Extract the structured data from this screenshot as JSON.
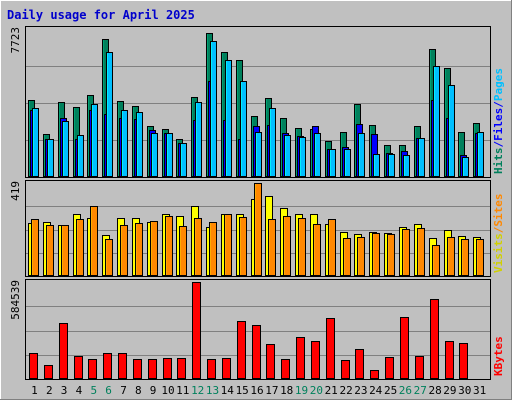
{
  "chart_data": [
    {
      "type": "bar",
      "title": "Daily usage for April 2025",
      "ymax_label": "7723",
      "ylim": [
        0,
        7723
      ],
      "categories": [
        "1",
        "2",
        "3",
        "4",
        "5",
        "6",
        "7",
        "8",
        "9",
        "10",
        "11",
        "12",
        "13",
        "14",
        "15",
        "16",
        "17",
        "18",
        "19",
        "20",
        "21",
        "22",
        "23",
        "24",
        "25",
        "26",
        "27",
        "28",
        "29",
        "30",
        "31"
      ],
      "weekend_days": [
        "5",
        "6",
        "12",
        "13",
        "19",
        "20",
        "26",
        "27"
      ],
      "side_labels": [
        {
          "text": "Hits",
          "color": "#00805c"
        },
        {
          "text": "/",
          "color": "#0000ff"
        },
        {
          "text": "Files",
          "color": "#0000ff"
        },
        {
          "text": "/",
          "color": "#0000ff"
        },
        {
          "text": "Pages",
          "color": "#00bfff"
        }
      ],
      "series": [
        {
          "name": "Hits",
          "color": "#00805c",
          "values": [
            4000,
            2250,
            3900,
            3650,
            4300,
            7200,
            3950,
            3700,
            2650,
            2500,
            2000,
            4150,
            7500,
            6500,
            6100,
            3200,
            4100,
            3100,
            2550,
            2500,
            1900,
            2350,
            3800,
            2700,
            1650,
            1650,
            2650,
            6700,
            5700,
            2350,
            2800
          ]
        },
        {
          "name": "Files",
          "color": "#0000ff",
          "values": [
            3500,
            2000,
            3100,
            2000,
            3500,
            3300,
            3100,
            3050,
            2450,
            2300,
            1800,
            3000,
            5000,
            3000,
            2000,
            2650,
            2700,
            2300,
            2150,
            2650,
            1450,
            1550,
            2750,
            2250,
            1250,
            1350,
            2050,
            4000,
            3100,
            1150,
            2300
          ]
        },
        {
          "name": "Pages",
          "color": "#00bfff",
          "values": [
            3600,
            2000,
            2900,
            2200,
            3800,
            6500,
            3500,
            3400,
            2300,
            2300,
            1800,
            3900,
            7100,
            6100,
            5000,
            2350,
            3600,
            2200,
            2100,
            2300,
            1450,
            1450,
            2300,
            1200,
            1200,
            1150,
            2050,
            5800,
            4800,
            1050,
            2350
          ]
        }
      ]
    },
    {
      "type": "bar",
      "ymax_label": "419",
      "ylim": [
        0,
        419
      ],
      "categories": [
        "1",
        "2",
        "3",
        "4",
        "5",
        "6",
        "7",
        "8",
        "9",
        "10",
        "11",
        "12",
        "13",
        "14",
        "15",
        "16",
        "17",
        "18",
        "19",
        "20",
        "21",
        "22",
        "23",
        "24",
        "25",
        "26",
        "27",
        "28",
        "29",
        "30",
        "31"
      ],
      "side_labels": [
        {
          "text": "Visits",
          "color": "#d0d000"
        },
        {
          "text": "/",
          "color": "#ff8800"
        },
        {
          "text": "Sites",
          "color": "#ff8800"
        }
      ],
      "series": [
        {
          "name": "Visits",
          "color": "#ffff00",
          "values": [
            240,
            245,
            230,
            280,
            260,
            185,
            260,
            260,
            245,
            280,
            270,
            315,
            220,
            280,
            280,
            345,
            360,
            305,
            280,
            280,
            235,
            200,
            190,
            200,
            195,
            220,
            235,
            170,
            205,
            180,
            175
          ]
        },
        {
          "name": "Sites",
          "color": "#ff8800",
          "values": [
            255,
            230,
            230,
            255,
            315,
            165,
            230,
            240,
            250,
            270,
            225,
            260,
            245,
            280,
            265,
            420,
            255,
            270,
            260,
            235,
            255,
            170,
            175,
            195,
            190,
            210,
            215,
            140,
            175,
            165,
            165
          ]
        }
      ]
    },
    {
      "type": "bar",
      "ymax_label": "584539",
      "ylim": [
        0,
        584539
      ],
      "categories": [
        "1",
        "2",
        "3",
        "4",
        "5",
        "6",
        "7",
        "8",
        "9",
        "10",
        "11",
        "12",
        "13",
        "14",
        "15",
        "16",
        "17",
        "18",
        "19",
        "20",
        "21",
        "22",
        "23",
        "24",
        "25",
        "26",
        "27",
        "28",
        "29",
        "30",
        "31"
      ],
      "side_labels": [
        {
          "text": "KBytes",
          "color": "#ff0000"
        }
      ],
      "series": [
        {
          "name": "KBytes",
          "color": "#ff0000",
          "values": [
            155000,
            85000,
            340000,
            140000,
            122000,
            155000,
            155000,
            120000,
            122000,
            128000,
            128000,
            584539,
            120000,
            128000,
            350000,
            325000,
            210000,
            120000,
            255000,
            230000,
            365000,
            115000,
            180000,
            55000,
            135000,
            375000,
            140000,
            480000,
            230000,
            215000,
            0
          ]
        }
      ]
    }
  ]
}
